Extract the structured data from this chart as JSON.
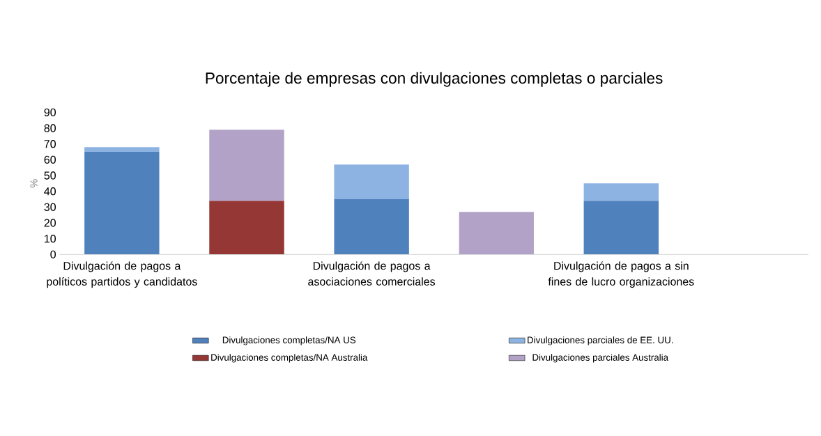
{
  "chart_data": {
    "type": "bar",
    "title": "Porcentaje de empresas con divulgaciones completas o parciales",
    "ylabel": "%",
    "stacked": true,
    "categories": [
      "Divulgación de pagos a políticos partidos y candidatos",
      null,
      "Divulgación de pagos a asociaciones comerciales",
      null,
      "Divulgación de pagos a sin fines de lucro organizaciones",
      null
    ],
    "series": [
      {
        "name": "Divulgaciones completas/NA US",
        "color": "#4f81bd",
        "values": [
          65,
          null,
          35,
          null,
          34,
          null
        ]
      },
      {
        "name": "Divulgaciones parciales de EE. UU.",
        "color": "#8db3e2",
        "values": [
          3,
          null,
          22,
          null,
          11,
          null
        ]
      },
      {
        "name": "Divulgaciones completas/NA Australia",
        "color": "#953735",
        "values": [
          null,
          34,
          null,
          null,
          null,
          null
        ]
      },
      {
        "name": "Divulgaciones parciales Australia",
        "color": "#b3a2c7",
        "values": [
          null,
          45,
          null,
          27,
          null,
          null
        ]
      }
    ],
    "ylim": [
      0,
      90
    ],
    "yticks": [
      0,
      10,
      20,
      30,
      40,
      50,
      60,
      70,
      80,
      90
    ],
    "grid": false,
    "legend": "bottom"
  }
}
